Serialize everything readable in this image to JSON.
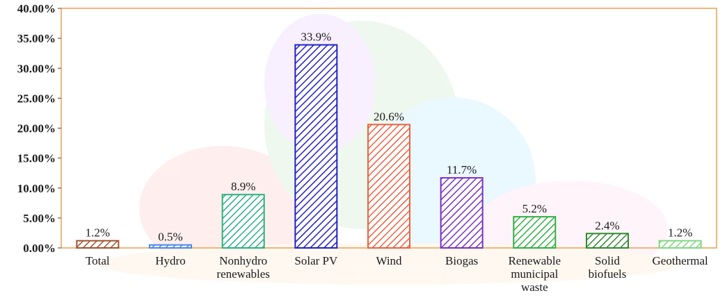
{
  "chart_data": {
    "type": "bar",
    "title": "",
    "xlabel": "",
    "ylabel": "",
    "ylim": [
      0,
      40
    ],
    "y_ticks": [
      "0.00%",
      "5.00%",
      "10.00%",
      "15.00%",
      "20.00%",
      "25.00%",
      "30.00%",
      "35.00%",
      "40.00%"
    ],
    "grid": false,
    "legend": "none",
    "categories": [
      [
        "Total"
      ],
      [
        "Hydro"
      ],
      [
        "Nonhydro",
        "renewables"
      ],
      [
        "Solar PV"
      ],
      [
        "Wind"
      ],
      [
        "Biogas"
      ],
      [
        "Renewable",
        "municipal",
        "waste"
      ],
      [
        "Solid",
        "biofuels"
      ],
      [
        "Geothermal"
      ]
    ],
    "values": [
      1.2,
      0.5,
      8.9,
      33.9,
      20.6,
      11.7,
      5.2,
      2.4,
      1.2
    ],
    "data_labels": [
      "1.2%",
      "0.5%",
      "8.9%",
      "33.9%",
      "20.6%",
      "11.7%",
      "5.2%",
      "2.4%",
      "1.2%"
    ],
    "colors": [
      "#a0522d",
      "#4a86e8",
      "#2ab07f",
      "#2020c8",
      "#ee6040",
      "#7a2fc0",
      "#30b040",
      "#2f8a2f",
      "#80d880"
    ],
    "plot_border_color": "#e8a050",
    "pattern": "diagonal-hatch"
  }
}
